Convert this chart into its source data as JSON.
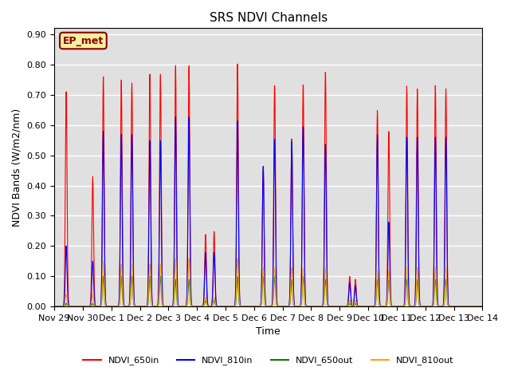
{
  "title": "SRS NDVI Channels",
  "ylabel": "NDVI Bands (W/m2/nm)",
  "xlabel": "Time",
  "annotation": "EP_met",
  "ylim": [
    0.0,
    0.92
  ],
  "plot_bg_color": "#e0e0e0",
  "grid_color": "white",
  "legend_entries": [
    "NDVI_650in",
    "NDVI_810in",
    "NDVI_650out",
    "NDVI_810out"
  ],
  "line_colors": [
    "red",
    "blue",
    "green",
    "orange"
  ],
  "yticks": [
    0.0,
    0.1,
    0.2,
    0.3,
    0.4,
    0.5,
    0.6,
    0.7,
    0.8,
    0.9
  ],
  "xtick_labels": [
    "Nov 29",
    "Nov 30",
    "Dec 1",
    "Dec 2",
    "Dec 3",
    "Dec 4",
    "Dec 5",
    "Dec 6",
    "Dec 7",
    "Dec 8",
    "Dec 9",
    "Dec 10",
    "Dec 11",
    "Dec 12",
    "Dec 13",
    "Dec 14"
  ],
  "peak_times": [
    0.42,
    1.35,
    1.72,
    2.35,
    2.72,
    3.35,
    3.72,
    4.25,
    4.72,
    5.3,
    5.6,
    6.42,
    7.32,
    7.72,
    8.32,
    8.72,
    9.5,
    10.35,
    10.55,
    11.32,
    11.72,
    12.35,
    12.72,
    13.35,
    13.72
  ],
  "p650in": [
    0.71,
    0.43,
    0.76,
    0.75,
    0.74,
    0.77,
    0.77,
    0.8,
    0.8,
    0.24,
    0.25,
    0.81,
    0.46,
    0.74,
    0.56,
    0.74,
    0.78,
    0.1,
    0.09,
    0.65,
    0.58,
    0.73,
    0.72,
    0.73,
    0.72
  ],
  "p810in": [
    0.2,
    0.15,
    0.58,
    0.57,
    0.57,
    0.55,
    0.55,
    0.63,
    0.63,
    0.18,
    0.18,
    0.62,
    0.47,
    0.56,
    0.55,
    0.6,
    0.54,
    0.08,
    0.07,
    0.57,
    0.28,
    0.56,
    0.56,
    0.56,
    0.56
  ],
  "p650out": [
    0.01,
    0.01,
    0.1,
    0.1,
    0.1,
    0.1,
    0.1,
    0.09,
    0.09,
    0.02,
    0.02,
    0.1,
    0.1,
    0.1,
    0.09,
    0.1,
    0.09,
    0.01,
    0.01,
    0.09,
    0.09,
    0.09,
    0.09,
    0.09,
    0.09
  ],
  "p810out": [
    0.04,
    0.04,
    0.15,
    0.14,
    0.14,
    0.14,
    0.14,
    0.16,
    0.16,
    0.03,
    0.03,
    0.16,
    0.13,
    0.13,
    0.13,
    0.13,
    0.13,
    0.02,
    0.02,
    0.12,
    0.12,
    0.13,
    0.13,
    0.13,
    0.13
  ],
  "peak_fwhm": 0.07,
  "n_days": 15,
  "n_points": 1500
}
